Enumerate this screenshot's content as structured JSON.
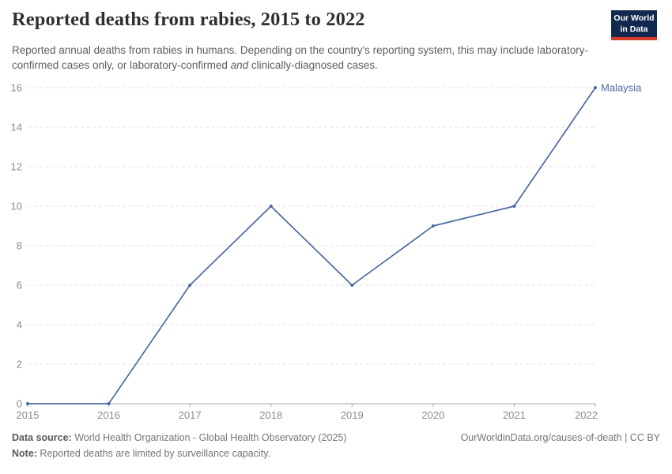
{
  "header": {
    "title": "Reported deaths from rabies, 2015 to 2022",
    "subtitle_parts": [
      "Reported annual deaths from rabies in humans. Depending on the country's reporting system, this may include laboratory-confirmed cases only, or laboratory-confirmed ",
      "and",
      " clinically-diagnosed cases."
    ],
    "logo": {
      "line1": "Our World",
      "line2": "in Data",
      "bg_color": "#12294F",
      "accent_color": "#D93A2B"
    }
  },
  "chart_data": {
    "type": "line",
    "title": "Reported deaths from rabies, 2015 to 2022",
    "x": [
      2015,
      2016,
      2017,
      2018,
      2019,
      2020,
      2021,
      2022
    ],
    "series": [
      {
        "name": "Malaysia",
        "color": "#4A69A2",
        "values": [
          0,
          0,
          6,
          10,
          6,
          9,
          10,
          16
        ]
      }
    ],
    "x_ticks": [
      "2015",
      "2016",
      "2017",
      "2018",
      "2019",
      "2020",
      "2021",
      "2022"
    ],
    "y_ticks": [
      0,
      2,
      4,
      6,
      8,
      10,
      12,
      14,
      16
    ],
    "xlim": [
      2015,
      2022
    ],
    "ylim": [
      0,
      16
    ],
    "xlabel": "",
    "ylabel": "",
    "grid": "horizontal-dashed",
    "legend": "entity-label-at-line-end",
    "colors": {
      "grid": "#E2E2E6",
      "axis": "#A6A6A6",
      "tick_labels": "#8B8B8B"
    }
  },
  "footer": {
    "source_label": "Data source:",
    "source_text": " World Health Organization - Global Health Observatory (2025)",
    "attribution": "OurWorldinData.org/causes-of-death | CC BY",
    "note_label": "Note:",
    "note_text": " Reported deaths are limited by surveillance capacity."
  }
}
